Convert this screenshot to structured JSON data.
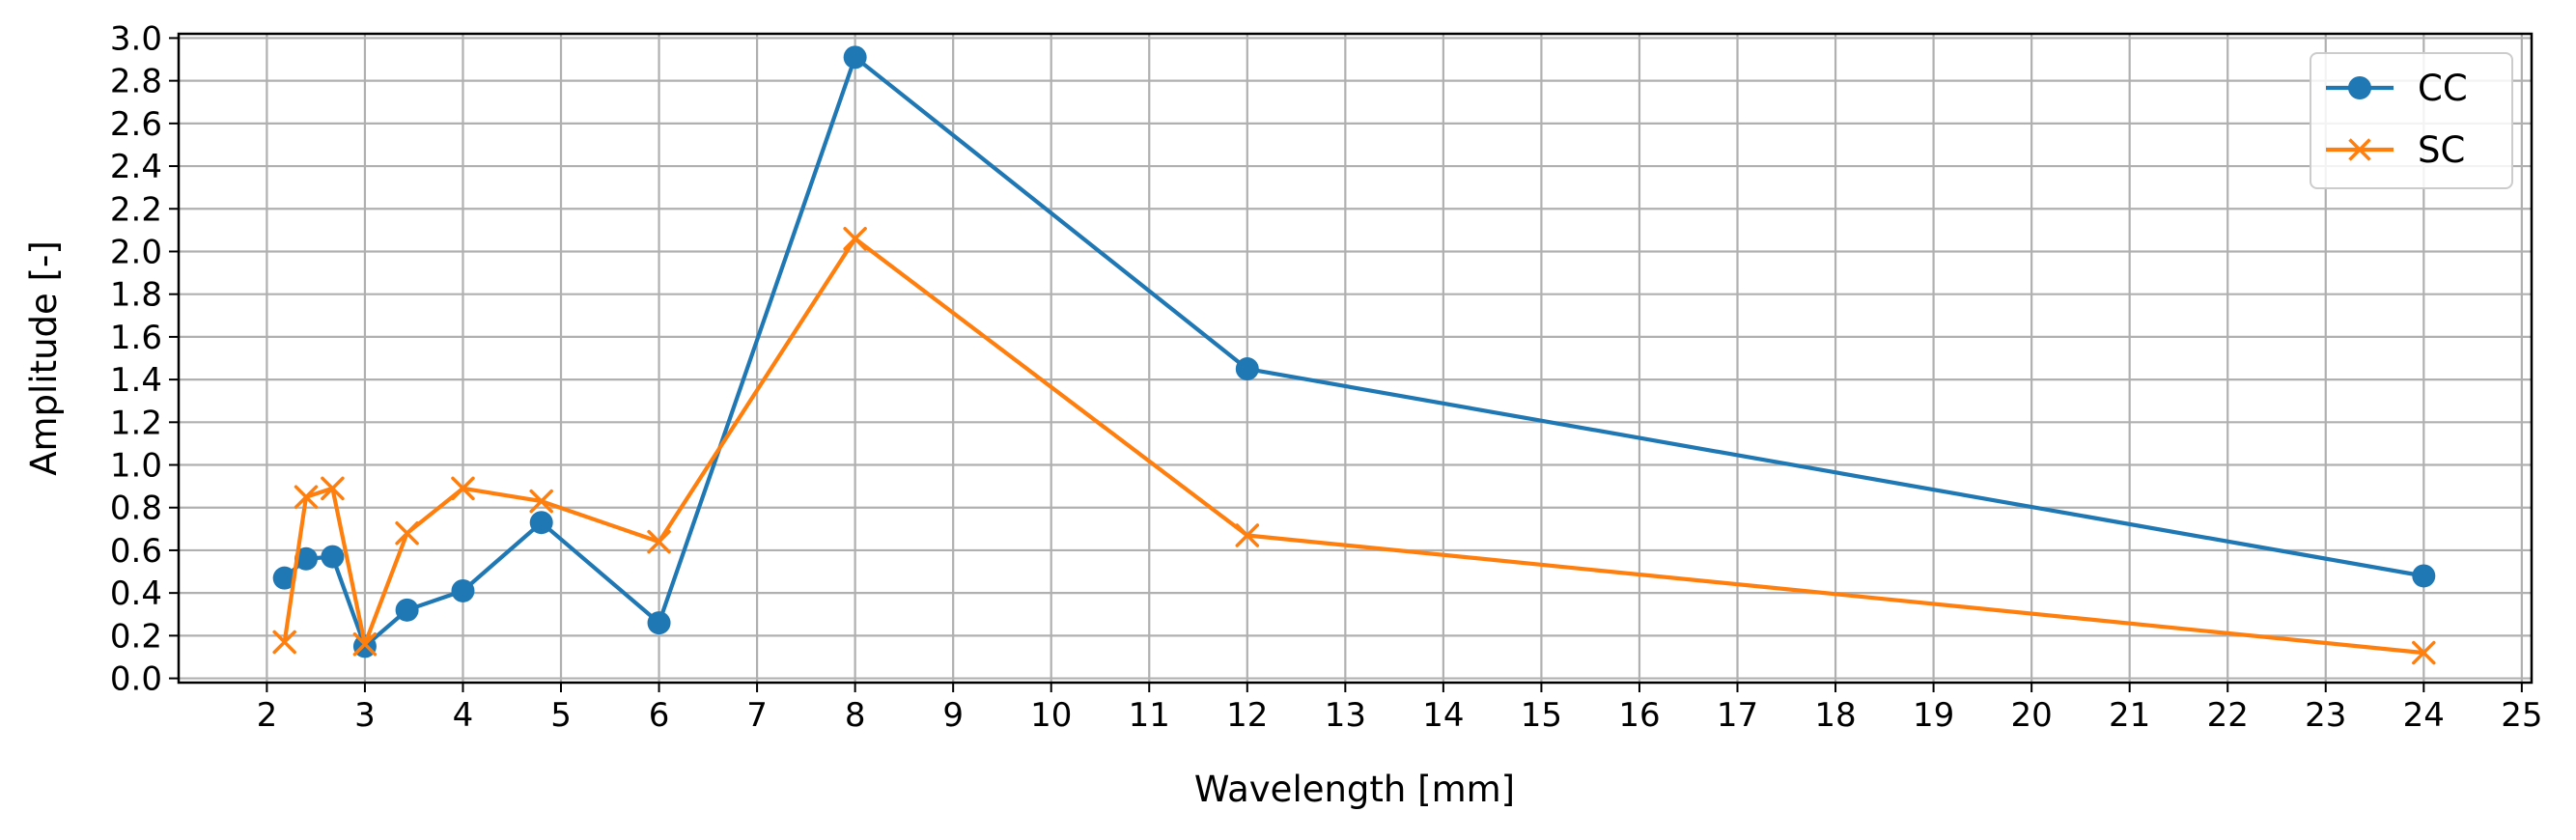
{
  "chart_data": {
    "type": "line",
    "title": "",
    "xlabel": "Wavelength [mm]",
    "ylabel": "Amplitude [-]",
    "xlim": [
      1.1,
      25.1
    ],
    "ylim": [
      -0.02,
      3.02
    ],
    "xticks": [
      "2",
      "3",
      "4",
      "5",
      "6",
      "7",
      "8",
      "9",
      "10",
      "11",
      "12",
      "13",
      "14",
      "15",
      "16",
      "17",
      "18",
      "19",
      "20",
      "21",
      "22",
      "23",
      "24",
      "25"
    ],
    "yticks": [
      "0.0",
      "0.2",
      "0.4",
      "0.6",
      "0.8",
      "1.0",
      "1.2",
      "1.4",
      "1.6",
      "1.8",
      "2.0",
      "2.2",
      "2.4",
      "2.6",
      "2.8",
      "3.0"
    ],
    "grid": true,
    "legend_position": "upper right",
    "x": [
      2.18,
      2.4,
      2.67,
      3.0,
      3.43,
      4.0,
      4.8,
      6.0,
      8.0,
      12.0,
      24.0
    ],
    "series": [
      {
        "name": "CC",
        "color": "#1f77b4",
        "marker": "circle",
        "values": [
          0.47,
          0.56,
          0.57,
          0.15,
          0.32,
          0.41,
          0.73,
          0.26,
          2.91,
          1.45,
          0.48
        ]
      },
      {
        "name": "SC",
        "color": "#ff7f0e",
        "marker": "x",
        "values": [
          0.17,
          0.85,
          0.89,
          0.16,
          0.68,
          0.89,
          0.83,
          0.64,
          2.06,
          0.67,
          0.12
        ]
      }
    ]
  }
}
